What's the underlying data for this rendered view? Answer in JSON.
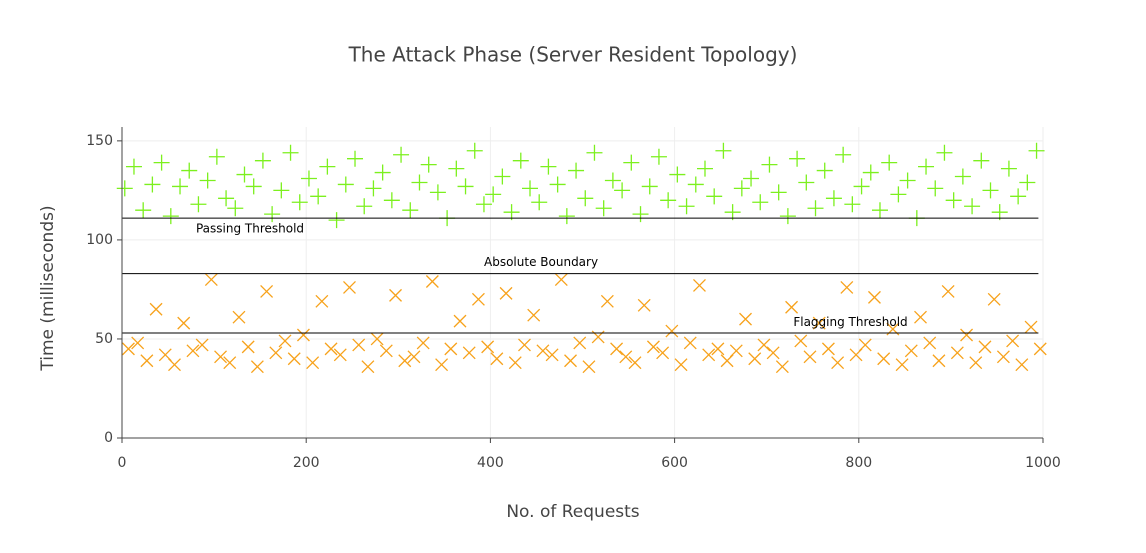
{
  "chart_data": {
    "type": "scatter",
    "title": "The Attack Phase (Server Resident Topology)",
    "x_label": "No. of Requests",
    "y_label": "Time (milliseconds)",
    "xlim": [
      0,
      1000
    ],
    "xticks": [
      0,
      200,
      400,
      600,
      800,
      1000
    ],
    "ylim": [
      0,
      157
    ],
    "yticks": [
      0,
      50,
      100,
      150
    ],
    "grid": true,
    "shapes": [
      {
        "y": 111,
        "x0": 0,
        "x1": 995
      },
      {
        "y": 83,
        "x0": 0,
        "x1": 995
      },
      {
        "y": 53,
        "x0": 0,
        "x1": 995
      }
    ],
    "annotations": [
      {
        "text": "Passing Threshold",
        "x": 139,
        "y": 105.5
      },
      {
        "text": "Absolute Boundary",
        "x": 455,
        "y": 88.6
      },
      {
        "text": "Flagging Threshold",
        "x": 791,
        "y": 58.4
      }
    ],
    "series": [
      {
        "color": "#7cf01e",
        "symbol": "cross",
        "x": [
          3,
          13,
          23,
          33,
          43,
          53,
          63,
          73,
          83,
          93,
          103,
          113,
          123,
          133,
          143,
          153,
          163,
          173,
          183,
          193,
          203,
          213,
          223,
          233,
          243,
          253,
          263,
          273,
          283,
          293,
          303,
          313,
          323,
          333,
          343,
          353,
          363,
          373,
          383,
          393,
          403,
          413,
          423,
          433,
          443,
          453,
          463,
          473,
          483,
          493,
          503,
          513,
          523,
          533,
          543,
          553,
          563,
          573,
          583,
          593,
          603,
          613,
          623,
          633,
          643,
          653,
          663,
          673,
          683,
          693,
          703,
          713,
          723,
          733,
          743,
          753,
          763,
          773,
          783,
          793,
          803,
          813,
          823,
          833,
          843,
          853,
          863,
          873,
          883,
          893,
          903,
          913,
          923,
          933,
          943,
          953,
          963,
          973,
          983,
          993
        ],
        "values": [
          126,
          137,
          115,
          128,
          139,
          112,
          127,
          135,
          118,
          130,
          142,
          121,
          116,
          133,
          127,
          140,
          113,
          125,
          144,
          119,
          131,
          122,
          137,
          110,
          128,
          141,
          117,
          126,
          134,
          120,
          143,
          115,
          129,
          138,
          124,
          111,
          136,
          127,
          145,
          118,
          123,
          132,
          114,
          140,
          126,
          119,
          137,
          128,
          112,
          135,
          121,
          144,
          116,
          130,
          125,
          139,
          113,
          127,
          142,
          120,
          133,
          117,
          128,
          136,
          122,
          145,
          114,
          126,
          131,
          119,
          138,
          124,
          112,
          141,
          129,
          116,
          135,
          121,
          143,
          118,
          127,
          134,
          115,
          139,
          123,
          130,
          111,
          137,
          126,
          144,
          120,
          132,
          117,
          140,
          125,
          114,
          136,
          122,
          129,
          145
        ]
      },
      {
        "color": "#f7a21b",
        "symbol": "x",
        "x": [
          7,
          17,
          27,
          37,
          47,
          57,
          67,
          77,
          87,
          97,
          107,
          117,
          127,
          137,
          147,
          157,
          167,
          177,
          187,
          197,
          207,
          217,
          227,
          237,
          247,
          257,
          267,
          277,
          287,
          297,
          307,
          317,
          327,
          337,
          347,
          357,
          367,
          377,
          387,
          397,
          407,
          417,
          427,
          437,
          447,
          457,
          467,
          477,
          487,
          497,
          507,
          517,
          527,
          537,
          547,
          557,
          567,
          577,
          587,
          597,
          607,
          617,
          627,
          637,
          647,
          657,
          667,
          677,
          687,
          697,
          707,
          717,
          727,
          737,
          747,
          757,
          767,
          777,
          787,
          797,
          807,
          817,
          827,
          837,
          847,
          857,
          867,
          877,
          887,
          897,
          907,
          917,
          927,
          937,
          947,
          957,
          967,
          977,
          987,
          997
        ],
        "values": [
          45,
          48,
          39,
          65,
          42,
          37,
          58,
          44,
          47,
          80,
          41,
          38,
          61,
          46,
          36,
          74,
          43,
          49,
          40,
          52,
          38,
          69,
          45,
          42,
          76,
          47,
          36,
          50,
          44,
          72,
          39,
          41,
          48,
          79,
          37,
          45,
          59,
          43,
          70,
          46,
          40,
          73,
          38,
          47,
          62,
          44,
          42,
          80,
          39,
          48,
          36,
          51,
          69,
          45,
          41,
          38,
          67,
          46,
          43,
          54,
          37,
          48,
          77,
          42,
          45,
          39,
          44,
          60,
          40,
          47,
          43,
          36,
          66,
          49,
          41,
          58,
          45,
          38,
          76,
          42,
          47,
          71,
          40,
          55,
          37,
          44,
          61,
          48,
          39,
          74,
          43,
          52,
          38,
          46,
          70,
          41,
          49,
          37,
          56,
          45
        ]
      }
    ]
  }
}
